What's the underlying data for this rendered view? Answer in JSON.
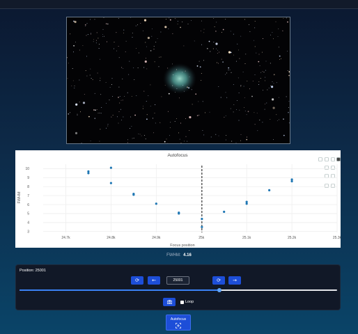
{
  "icons": {
    "refresh": "refresh-icon",
    "step_back": "arrow-left-icon",
    "step_forward": "arrow-right-icon",
    "sync": "sync-icon",
    "camera": "camera-icon",
    "focus": "focus-icon"
  },
  "colors": {
    "accent": "#1d4ed8",
    "points": "#1f77b4",
    "panel": "#111827"
  },
  "plot_toolbar_icons": [
    "camera-icon",
    "zoom-icon",
    "pan-icon",
    "autoscale-icon",
    "zoom-in-icon",
    "zoom-out-icon",
    "reset-axes-icon",
    "select-icon",
    "lasso-icon",
    "home-icon"
  ],
  "chart_data": {
    "type": "scatter",
    "title": "Autofocus",
    "xlabel": "Focus position",
    "ylabel": "FWHM",
    "x_ticks": [
      24700,
      24800,
      24900,
      25000,
      25100,
      25200,
      25300
    ],
    "x_tick_labels": [
      "24.7k",
      "24.8k",
      "24.9k",
      "25k",
      "25.1k",
      "25.2k",
      "25.3k"
    ],
    "y_ticks": [
      3,
      4,
      5,
      6,
      7,
      8,
      9,
      10
    ],
    "y_tick_labels": [
      "3",
      "4",
      "5",
      "6",
      "7",
      "8",
      "9",
      "10"
    ],
    "xlim": [
      24650,
      25300
    ],
    "ylim": [
      2.9,
      10.5
    ],
    "grid": true,
    "vline_x": 25001,
    "points": [
      {
        "x": 24750,
        "y": 9.5
      },
      {
        "x": 24750,
        "y": 9.7
      },
      {
        "x": 24800,
        "y": 10.1
      },
      {
        "x": 24800,
        "y": 8.4
      },
      {
        "x": 24850,
        "y": 7.1
      },
      {
        "x": 24850,
        "y": 7.2
      },
      {
        "x": 24900,
        "y": 6.1
      },
      {
        "x": 24950,
        "y": 5.0
      },
      {
        "x": 24950,
        "y": 5.1
      },
      {
        "x": 25001,
        "y": 4.4
      },
      {
        "x": 25001,
        "y": 3.5
      },
      {
        "x": 25050,
        "y": 5.2
      },
      {
        "x": 25100,
        "y": 6.3
      },
      {
        "x": 25100,
        "y": 6.1
      },
      {
        "x": 25150,
        "y": 7.6
      },
      {
        "x": 25200,
        "y": 8.6
      },
      {
        "x": 25200,
        "y": 8.8
      }
    ]
  },
  "fwhm": {
    "label": "FWHM:",
    "value": "4.16"
  },
  "controls": {
    "position_label": "Position: 25001",
    "position_value": "25001",
    "slider_fraction": 0.63,
    "loop_label": "Loop"
  },
  "autofocus": {
    "label": "Autofocus"
  }
}
